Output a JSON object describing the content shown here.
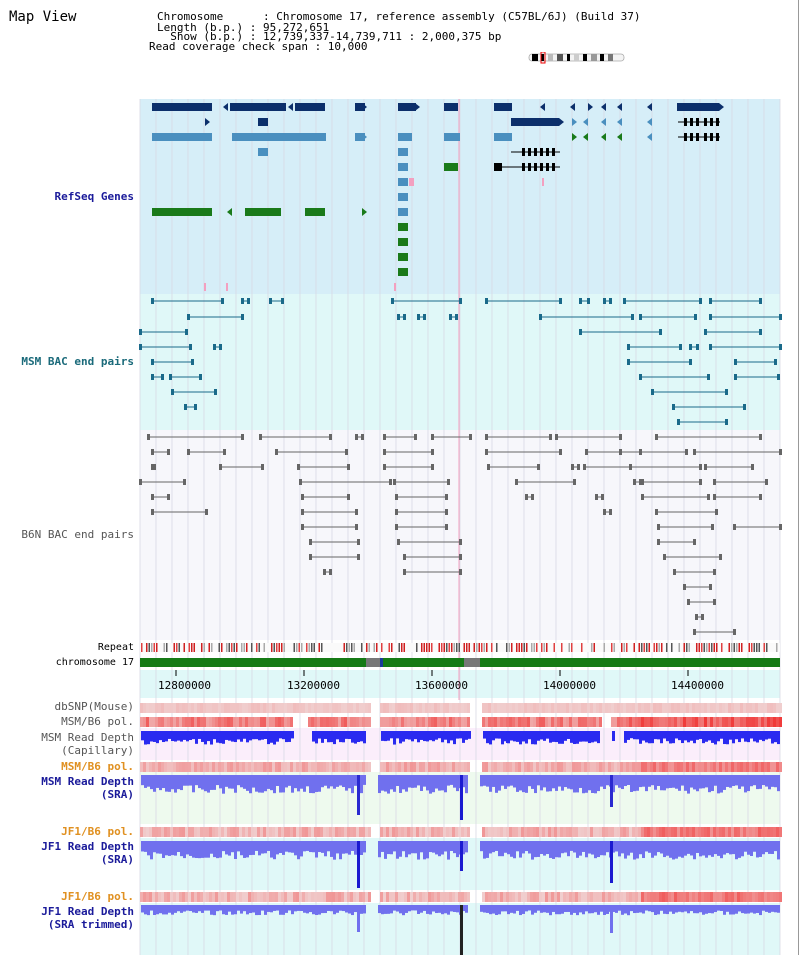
{
  "title": "Map View",
  "header": {
    "chromosome_line": "Chromosome      : Chromosome 17, reference assembly (C57BL/6J) (Build 37)",
    "length_line": "Length (b.p.) : 95,272,651",
    "show_line": "  Show (b.p.) : 12,739,337-14,739,711 : 2,000,375 bp",
    "coverage_line": "Read coverage check span : 10,000"
  },
  "tracks": {
    "refseq": "RefSeq Genes",
    "msm_bac": "MSM BAC end pairs",
    "b6n_bac": "B6N BAC end pairs",
    "repeat": "Repeat",
    "chromosome": "chromosome 17",
    "dbsnp": "dbSNP(Mouse)",
    "msm_b6_pol_1": "MSM/B6 pol.",
    "msm_depth_cap_1": "MSM Read Depth",
    "msm_depth_cap_2": "(Capillary)",
    "msm_b6_pol_2": "MSM/B6 pol.",
    "msm_depth_sra_1": "MSM Read Depth",
    "msm_depth_sra_2": "(SRA)",
    "jf1_b6_pol_1": "JF1/B6 pol.",
    "jf1_depth_sra_1": "JF1 Read Depth",
    "jf1_depth_sra_2": "(SRA)",
    "jf1_b6_pol_2": "JF1/B6 pol.",
    "jf1_depth_trim_1": "JF1 Read Depth",
    "jf1_depth_trim_2": "(SRA trimmed)"
  },
  "axis": {
    "ticks": [
      "12800000",
      "13200000",
      "13600000",
      "14000000",
      "14400000"
    ]
  },
  "colors": {
    "refseq_bg": "#d6eef8",
    "msm_bg": "#e0f8f8",
    "b6n_bg": "#f7f7fb",
    "dark_navy": "#0c2f6b",
    "teal": "#4a8fbf",
    "green": "#1a7a1a",
    "msm_line": "#1a6a8a",
    "b6n_line": "#666666",
    "chrom_green": "#157a15",
    "label_blue": "#1a1a9a",
    "label_orange": "#e09020",
    "label_teal": "#1a6a7a"
  }
}
